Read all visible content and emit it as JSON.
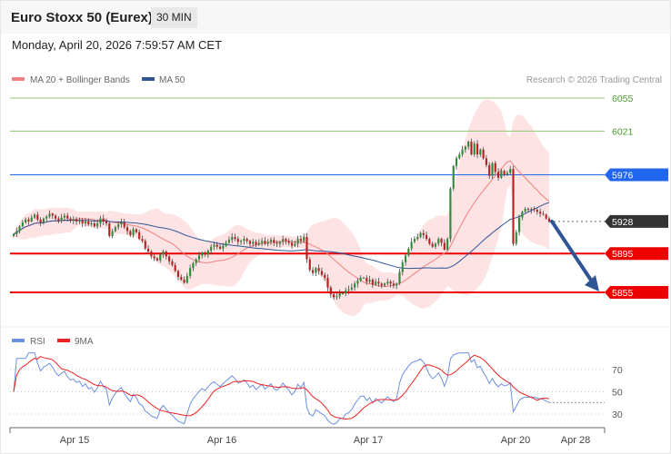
{
  "header": {
    "instrument": "Euro Stoxx 50 (Eurex)",
    "timeframe": "30 MIN",
    "datetime": "Monday, April 20, 2026 7:59:57 AM CET"
  },
  "legend": {
    "ma20_label": "MA 20 + Bollinger Bands",
    "ma50_label": "MA 50",
    "copyright": "Research © 2026 Trading Central",
    "rsi_label": "RSI",
    "ma9_label": "9MA"
  },
  "colors": {
    "ma20": "#f08080",
    "ma50": "#2f5597",
    "bollinger_fill": "#fde0e0",
    "bull_candle": "#2e8b3a",
    "bear_candle": "#b22222",
    "resistance": "#8dc76b",
    "pivot_blue": "#2266ee",
    "support_red": "#ee0000",
    "current": "#333333",
    "arrow": "#2f5597",
    "rsi": "#6d8fe0",
    "rsi_ma": "#ee2222"
  },
  "chart_data": [
    {
      "type": "candlestick",
      "x_ticks": [
        "Apr 15",
        "Apr 16",
        "Apr 17",
        "Apr 20",
        "Apr 28"
      ],
      "levels": [
        {
          "value": 6055,
          "label": "6055",
          "kind": "resistance"
        },
        {
          "value": 6021,
          "label": "6021",
          "kind": "resistance"
        },
        {
          "value": 5976,
          "label": "5976",
          "kind": "pivot"
        },
        {
          "value": 5928,
          "label": "5928",
          "kind": "current"
        },
        {
          "value": 5895,
          "label": "5895",
          "kind": "support"
        },
        {
          "value": 5855,
          "label": "5855",
          "kind": "support"
        }
      ],
      "close": [
        5915,
        5918,
        5923,
        5927,
        5930,
        5928,
        5932,
        5935,
        5930,
        5927,
        5931,
        5933,
        5936,
        5934,
        5931,
        5929,
        5932,
        5934,
        5931,
        5929,
        5930,
        5928,
        5929,
        5926,
        5928,
        5925,
        5926,
        5923,
        5926,
        5931,
        5928,
        5926,
        5913,
        5918,
        5922,
        5925,
        5927,
        5922,
        5918,
        5914,
        5920,
        5917,
        5910,
        5908,
        5900,
        5897,
        5892,
        5890,
        5888,
        5894,
        5897,
        5892,
        5887,
        5883,
        5877,
        5871,
        5868,
        5865,
        5872,
        5880,
        5885,
        5889,
        5893,
        5896,
        5894,
        5898,
        5902,
        5904,
        5902,
        5900,
        5903,
        5906,
        5909,
        5912,
        5910,
        5907,
        5908,
        5910,
        5908,
        5905,
        5907,
        5904,
        5906,
        5908,
        5905,
        5907,
        5909,
        5906,
        5905,
        5907,
        5910,
        5908,
        5906,
        5903,
        5905,
        5910,
        5908,
        5912,
        5889,
        5878,
        5875,
        5880,
        5877,
        5873,
        5870,
        5860,
        5853,
        5850,
        5851,
        5854,
        5854,
        5857,
        5858,
        5860,
        5864,
        5867,
        5870,
        5870,
        5866,
        5868,
        5863,
        5866,
        5864,
        5862,
        5864,
        5866,
        5864,
        5862,
        5864,
        5876,
        5886,
        5893,
        5900,
        5907,
        5910,
        5912,
        5916,
        5914,
        5910,
        5905,
        5902,
        5905,
        5910,
        5906,
        5899,
        5910,
        5962,
        5985,
        5993,
        5997,
        6002,
        6005,
        6010,
        5997,
        6008,
        5997,
        6002,
        5993,
        5986,
        5975,
        5988,
        5979,
        5973,
        5980,
        5976,
        5978,
        5982,
        5905,
        5917,
        5932,
        5938,
        5941,
        5940,
        5941,
        5940,
        5938,
        5936,
        5935,
        5931,
        5928
      ]
    },
    {
      "type": "line",
      "name": "RSI",
      "ylim": [
        20,
        85
      ],
      "y_ticks": [
        70,
        50,
        30
      ]
    }
  ]
}
